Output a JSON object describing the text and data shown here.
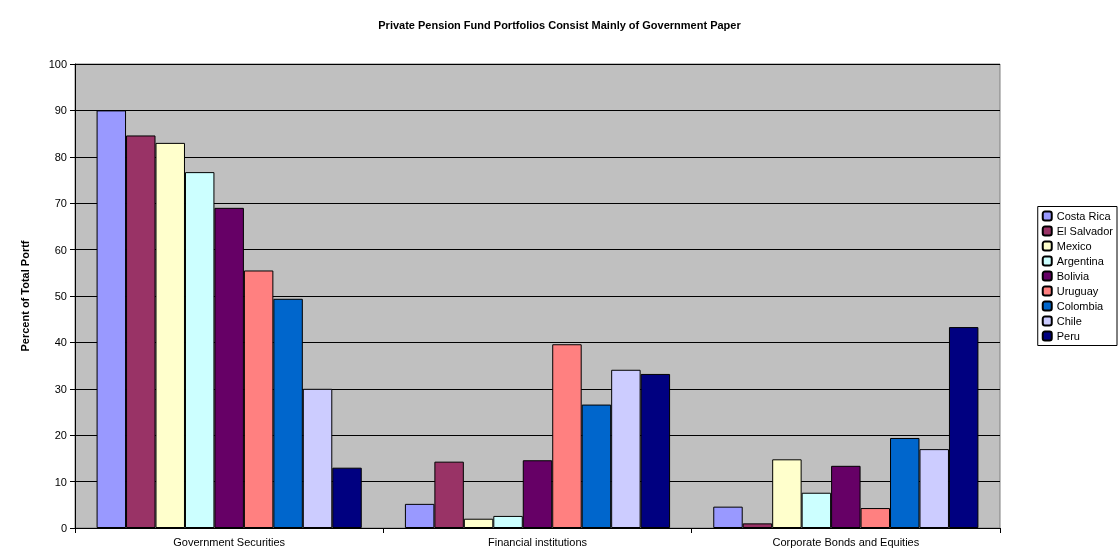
{
  "chart_data": {
    "type": "bar",
    "title": "Private Pension Fund Portfolios Consist Mainly of Government Paper",
    "ylabel": "Percent of Total Portf",
    "categories": [
      "Government Securities",
      "Financial institutions",
      "Corporate Bonds and Equities"
    ],
    "series": [
      {
        "name": "Costa Rica",
        "color": "#9999ff",
        "values": [
          90,
          5.2,
          4.6
        ]
      },
      {
        "name": "El Salvador",
        "color": "#993366",
        "values": [
          84.6,
          14.3,
          1
        ]
      },
      {
        "name": "Mexico",
        "color": "#ffffcc",
        "values": [
          83,
          2,
          14.8
        ]
      },
      {
        "name": "Argentina",
        "color": "#ccffff",
        "values": [
          76.7,
          2.6,
          7.6
        ]
      },
      {
        "name": "Bolivia",
        "color": "#660066",
        "values": [
          69,
          14.6,
          13.4
        ]
      },
      {
        "name": "Uruguay",
        "color": "#ff8080",
        "values": [
          55.5,
          39.6,
          4.3
        ]
      },
      {
        "name": "Colombia",
        "color": "#0066cc",
        "values": [
          49.4,
          26.6,
          19.4
        ]
      },
      {
        "name": "Chile",
        "color": "#ccccff",
        "values": [
          30,
          34.1,
          17
        ]
      },
      {
        "name": "Peru",
        "color": "#000080",
        "values": [
          13,
          33.2,
          43.3
        ]
      }
    ],
    "ylim": [
      0,
      100
    ],
    "yticks": [
      0,
      10,
      20,
      30,
      40,
      50,
      60,
      70,
      80,
      90,
      100
    ],
    "grid": "y",
    "legend": "right"
  }
}
